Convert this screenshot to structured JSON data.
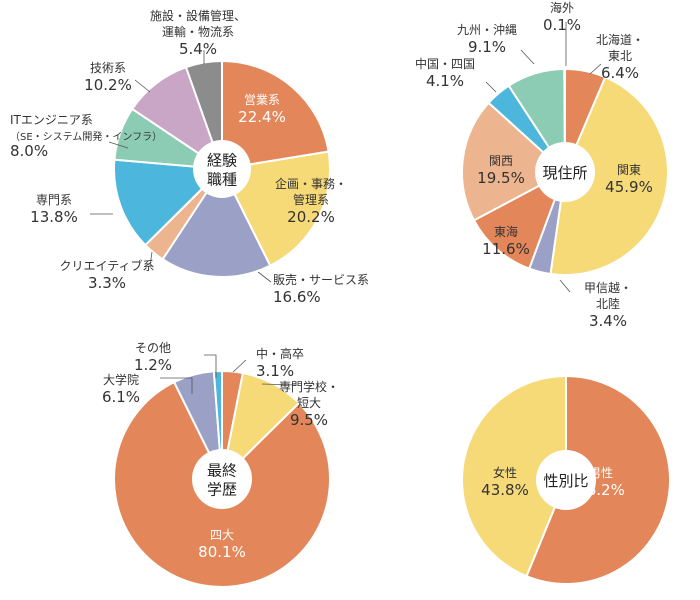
{
  "chart_data": [
    {
      "type": "pie",
      "center_label": [
        "経験",
        "職種"
      ],
      "unit": "%",
      "slices": [
        {
          "label": [
            "営業系"
          ],
          "value": 22.4,
          "color": "#e3875a",
          "text_color": "#ffffff"
        },
        {
          "label": [
            "企画・事務・",
            "管理系"
          ],
          "value": 20.2,
          "color": "#f6da78",
          "text_color": "#333333"
        },
        {
          "label": [
            "販売・サービス系"
          ],
          "value": 16.6,
          "color": "#9aa0c6",
          "text_color": "#333333"
        },
        {
          "label": [
            "クリエイティブ系"
          ],
          "value": 3.3,
          "color": "#edb58f",
          "text_color": "#333333"
        },
        {
          "label": [
            "専門系"
          ],
          "value": 13.8,
          "color": "#4db6dd",
          "text_color": "#333333"
        },
        {
          "label": [
            "ITエンジニア系",
            "（SE・システム開発・インフラ）"
          ],
          "value": 8.0,
          "color": "#8ccbb4",
          "text_color": "#333333"
        },
        {
          "label": [
            "技術系"
          ],
          "value": 10.2,
          "color": "#c9a6c6",
          "text_color": "#333333"
        },
        {
          "label": [
            "施設・設備管理、",
            "運輸・物流系"
          ],
          "value": 5.4,
          "color": "#8c8c8c",
          "text_color": "#333333"
        }
      ]
    },
    {
      "type": "pie",
      "center_label": [
        "現住所"
      ],
      "unit": "%",
      "slices": [
        {
          "label": [
            "北海道・",
            "東北"
          ],
          "value": 6.4,
          "color": "#e3875a",
          "text_color": "#333333"
        },
        {
          "label": [
            "関東"
          ],
          "value": 45.9,
          "color": "#f6da78",
          "text_color": "#333333"
        },
        {
          "label": [
            "甲信越・",
            "北陸"
          ],
          "value": 3.4,
          "color": "#9aa0c6",
          "text_color": "#333333"
        },
        {
          "label": [
            "東海"
          ],
          "value": 11.6,
          "color": "#e3875a",
          "text_color": "#333333"
        },
        {
          "label": [
            "関西"
          ],
          "value": 19.5,
          "color": "#edb58f",
          "text_color": "#333333"
        },
        {
          "label": [
            "中国・四国"
          ],
          "value": 4.1,
          "color": "#4db6dd",
          "text_color": "#333333"
        },
        {
          "label": [
            "九州・沖縄"
          ],
          "value": 9.1,
          "color": "#8ccbb4",
          "text_color": "#333333"
        },
        {
          "label": [
            "海外"
          ],
          "value": 0.1,
          "color": "#c9a6c6",
          "text_color": "#333333"
        }
      ]
    },
    {
      "type": "pie",
      "center_label": [
        "最終",
        "学歴"
      ],
      "unit": "%",
      "slices": [
        {
          "label": [
            "中・高卒"
          ],
          "value": 3.1,
          "color": "#e3875a",
          "text_color": "#333333"
        },
        {
          "label": [
            "専門学校・",
            "短大"
          ],
          "value": 9.5,
          "color": "#f6da78",
          "text_color": "#333333"
        },
        {
          "label": [
            "四大"
          ],
          "value": 80.1,
          "color": "#e3875a",
          "text_color": "#ffffff"
        },
        {
          "label": [
            "大学院"
          ],
          "value": 6.1,
          "color": "#9aa0c6",
          "text_color": "#333333"
        },
        {
          "label": [
            "その他"
          ],
          "value": 1.2,
          "color": "#4db6dd",
          "text_color": "#333333"
        }
      ]
    },
    {
      "type": "pie",
      "center_label": [
        "性別比"
      ],
      "unit": "%",
      "slices": [
        {
          "label": [
            "男性"
          ],
          "value": 56.2,
          "color": "#e3875a",
          "text_color": "#ffffff"
        },
        {
          "label": [
            "女性"
          ],
          "value": 43.8,
          "color": "#f6da78",
          "text_color": "#333333"
        }
      ]
    }
  ]
}
